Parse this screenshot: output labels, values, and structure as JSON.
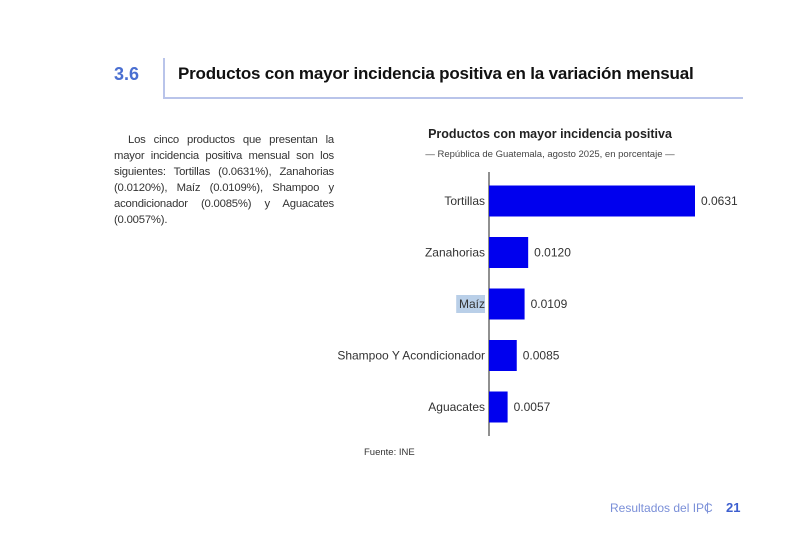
{
  "section": {
    "number": "3.6",
    "title": "Productos con mayor incidencia positiva en la variación mensual"
  },
  "body_text": "Los cinco productos que presentan la mayor incidencia positiva mensual son los siguientes: Tortillas (0.0631%), Zanahorias (0.0120%), Maíz (0.0109%), Shampoo y acondicionador (0.0085%) y Aguacates (0.0057%).",
  "chart_data": {
    "type": "bar",
    "orientation": "horizontal",
    "title": "Productos con mayor incidencia positiva",
    "subtitle": "— República de Guatemala, agosto 2025, en porcentaje —",
    "categories": [
      "Tortillas",
      "Zanahorias",
      "Maíz",
      "Shampoo Y Acondicionador",
      "Aguacates"
    ],
    "values": [
      0.0631,
      0.012,
      0.0109,
      0.0085,
      0.0057
    ],
    "data_labels": [
      "0.0631",
      "0.0120",
      "0.0109",
      "0.0085",
      "0.0057"
    ],
    "xlim": [
      0,
      0.0631
    ],
    "bar_color": "#0000ee",
    "highlighted_category": "Maíz",
    "highlight_color": "#b9cfe8",
    "grid": false
  },
  "source": "Fuente: INE",
  "footer": {
    "label": "Resultados del IPC",
    "separator": "|",
    "page": "21"
  }
}
